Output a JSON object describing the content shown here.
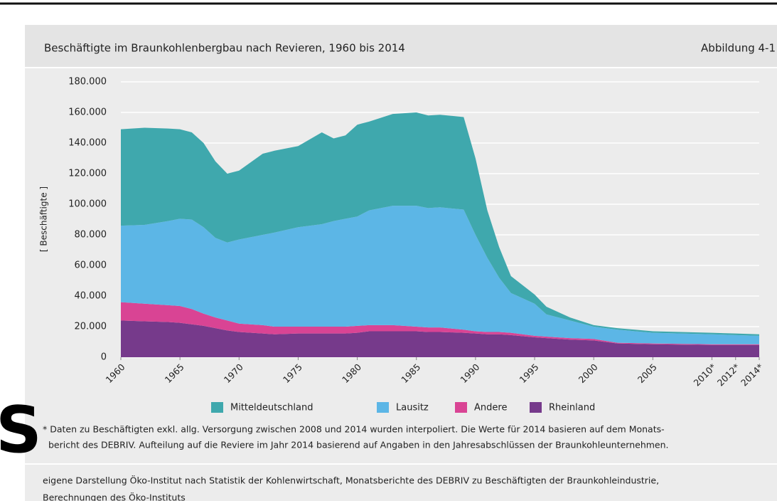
{
  "chart_data": {
    "type": "stacked_area",
    "title": "Beschäftigte im Braunkohlenbergbau nach Revieren, 1960 bis 2014",
    "figure_label": "Abbildung 4-1",
    "ylabel": "[ Beschäftigte ]",
    "x": [
      1960,
      1962,
      1964,
      1965,
      1966,
      1967,
      1968,
      1969,
      1970,
      1972,
      1973,
      1975,
      1977,
      1978,
      1979,
      1980,
      1981,
      1983,
      1985,
      1986,
      1987,
      1989,
      1990,
      1991,
      1992,
      1993,
      1995,
      1996,
      1998,
      2000,
      2002,
      2005,
      2010,
      2012,
      2014
    ],
    "series": [
      {
        "name": "Mitteldeutschland",
        "color": "#3fa8ad",
        "values": [
          63000,
          63500,
          60500,
          58500,
          57000,
          55000,
          50000,
          45000,
          45000,
          53000,
          53500,
          53000,
          60000,
          54000,
          54500,
          60000,
          58000,
          60000,
          61000,
          60500,
          60500,
          60500,
          50000,
          31000,
          20000,
          11000,
          6000,
          5000,
          2000,
          1000,
          1000,
          1000,
          1000,
          1000,
          1000
        ]
      },
      {
        "name": "Lausitz",
        "color": "#5cb6e6",
        "values": [
          50000,
          51500,
          55000,
          57000,
          58500,
          56500,
          52000,
          51000,
          55000,
          59000,
          61500,
          65000,
          67000,
          69000,
          70500,
          71500,
          75000,
          78000,
          79000,
          78000,
          78500,
          78500,
          63000,
          48500,
          35500,
          26000,
          21000,
          14500,
          11500,
          8000,
          8500,
          7000,
          6500,
          6000,
          5500
        ]
      },
      {
        "name": "Andere",
        "color": "#d94494",
        "values": [
          12000,
          11500,
          11000,
          11000,
          10000,
          8000,
          7000,
          6500,
          5500,
          5500,
          5000,
          4500,
          4500,
          4500,
          4500,
          4500,
          4000,
          4000,
          3000,
          3000,
          3000,
          2000,
          1500,
          1500,
          1500,
          1500,
          1000,
          1000,
          1000,
          1000,
          500,
          500,
          500,
          500,
          500
        ]
      },
      {
        "name": "Rheinland",
        "color": "#763a8b",
        "values": [
          24000,
          23500,
          23000,
          22500,
          21500,
          20500,
          19000,
          17500,
          16500,
          15500,
          15000,
          15500,
          15500,
          15500,
          15500,
          16000,
          17000,
          17000,
          17000,
          16500,
          16500,
          16000,
          15500,
          15000,
          15000,
          14500,
          13000,
          12500,
          11500,
          11000,
          9000,
          8500,
          8000,
          8000,
          8000
        ]
      }
    ],
    "xlim": [
      1960,
      2014
    ],
    "xticks": [
      1960,
      1965,
      1970,
      1975,
      1980,
      1985,
      1990,
      1995,
      2000,
      2005,
      {
        "value": 2010,
        "label": "2010*"
      },
      {
        "value": 2012,
        "label": "2012*"
      },
      {
        "value": 2014,
        "label": "2014*"
      }
    ],
    "ylim": [
      0,
      180000
    ],
    "yticks": [
      0,
      {
        "value": 20000,
        "label": "20.000"
      },
      {
        "value": 40000,
        "label": "40.000"
      },
      {
        "value": 60000,
        "label": "60.000"
      },
      {
        "value": 80000,
        "label": "80.000"
      },
      {
        "value": 100000,
        "label": "100.000"
      },
      {
        "value": 120000,
        "label": "120.000"
      },
      {
        "value": 140000,
        "label": "140.000"
      },
      {
        "value": 160000,
        "label": "160.000"
      },
      {
        "value": 180000,
        "label": "180.000"
      }
    ],
    "grid": true,
    "footnote": [
      "* Daten zu Beschäftigten exkl. allg. Versorgung zwischen 2008 und 2014 wurden interpoliert. Die Werte für 2014 basieren auf dem Monats-",
      "bericht des DEBRIV. Aufteilung auf die Reviere im Jahr 2014 basierend auf Angaben in den Jahresabschlüssen der Braunkohleunternehmen."
    ],
    "source": [
      "eigene Darstellung Öko-Institut nach Statistik der Kohlenwirtschaft, Monatsberichte des DEBRIV zu Beschäftigten der Braunkohleindustrie,",
      "Berechnungen des Öko-Instituts"
    ]
  },
  "background_fragment": "S"
}
